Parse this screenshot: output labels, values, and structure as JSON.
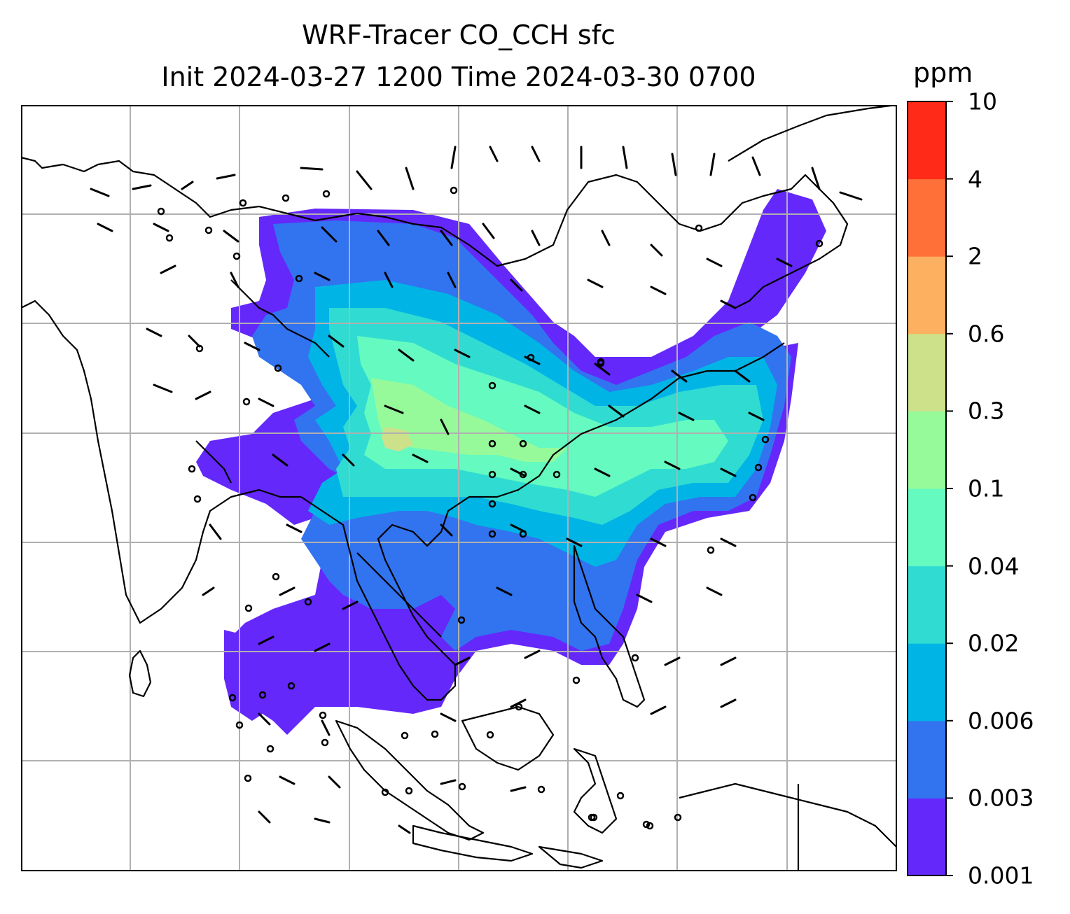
{
  "title": {
    "line1": "WRF-Tracer CO_CCH sfc",
    "line2": "Init 2024-03-27 1200 Time 2024-03-30 0700"
  },
  "colorbar": {
    "unit": "ppm",
    "levels": [
      "0.001",
      "0.003",
      "0.006",
      "0.02",
      "0.04",
      "0.1",
      "0.3",
      "0.6",
      "2",
      "4",
      "10"
    ],
    "colors": [
      "#6428fb",
      "#3273f0",
      "#00b4e6",
      "#30dcd2",
      "#64fac0",
      "#96fa9a",
      "#cde08a",
      "#fdb060",
      "#ff7038",
      "#ff2a17"
    ]
  },
  "map": {
    "gridlines": true,
    "gridline_color": "#b0b0b0",
    "coastline_color": "#000000"
  }
}
